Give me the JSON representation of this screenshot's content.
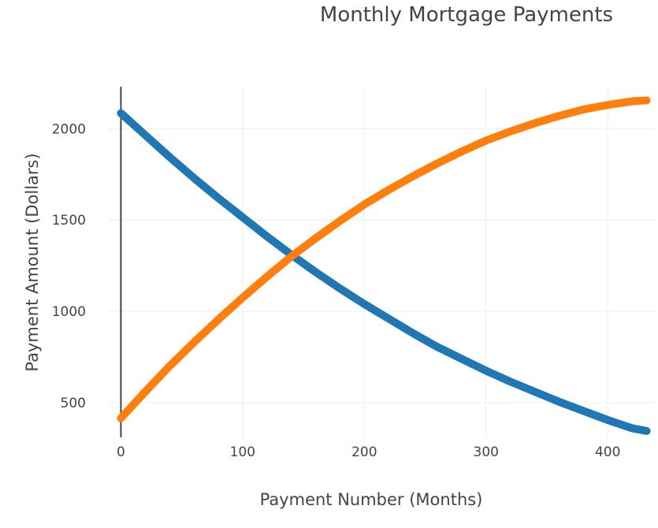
{
  "chart_data": {
    "type": "line",
    "title": "Monthly Mortgage Payments",
    "xlabel": "Payment Number (Months)",
    "ylabel": "Payment Amount (Dollars)",
    "xlim": [
      -10,
      440
    ],
    "ylim": [
      310,
      2230
    ],
    "x_ticks": [
      0,
      100,
      200,
      300,
      400
    ],
    "y_ticks": [
      500,
      1000,
      1500,
      2000
    ],
    "grid": true,
    "legend": "none",
    "series": [
      {
        "color": "#1f77b4",
        "x": [
          0,
          20,
          40,
          60,
          80,
          100,
          120,
          140,
          160,
          180,
          200,
          220,
          240,
          260,
          280,
          300,
          320,
          340,
          360,
          380,
          400,
          420,
          432
        ],
        "y": [
          2085,
          1965,
          1845,
          1730,
          1620,
          1515,
          1410,
          1310,
          1215,
          1125,
          1040,
          960,
          880,
          805,
          740,
          675,
          615,
          560,
          505,
          455,
          405,
          360,
          345
        ]
      },
      {
        "color": "#ff7f0e",
        "x": [
          0,
          20,
          40,
          60,
          80,
          100,
          120,
          140,
          160,
          180,
          200,
          220,
          240,
          260,
          280,
          300,
          320,
          340,
          360,
          380,
          400,
          420,
          432
        ],
        "y": [
          415,
          560,
          700,
          830,
          955,
          1075,
          1190,
          1300,
          1400,
          1495,
          1585,
          1665,
          1740,
          1810,
          1875,
          1935,
          1985,
          2030,
          2070,
          2105,
          2130,
          2150,
          2155
        ]
      }
    ]
  }
}
